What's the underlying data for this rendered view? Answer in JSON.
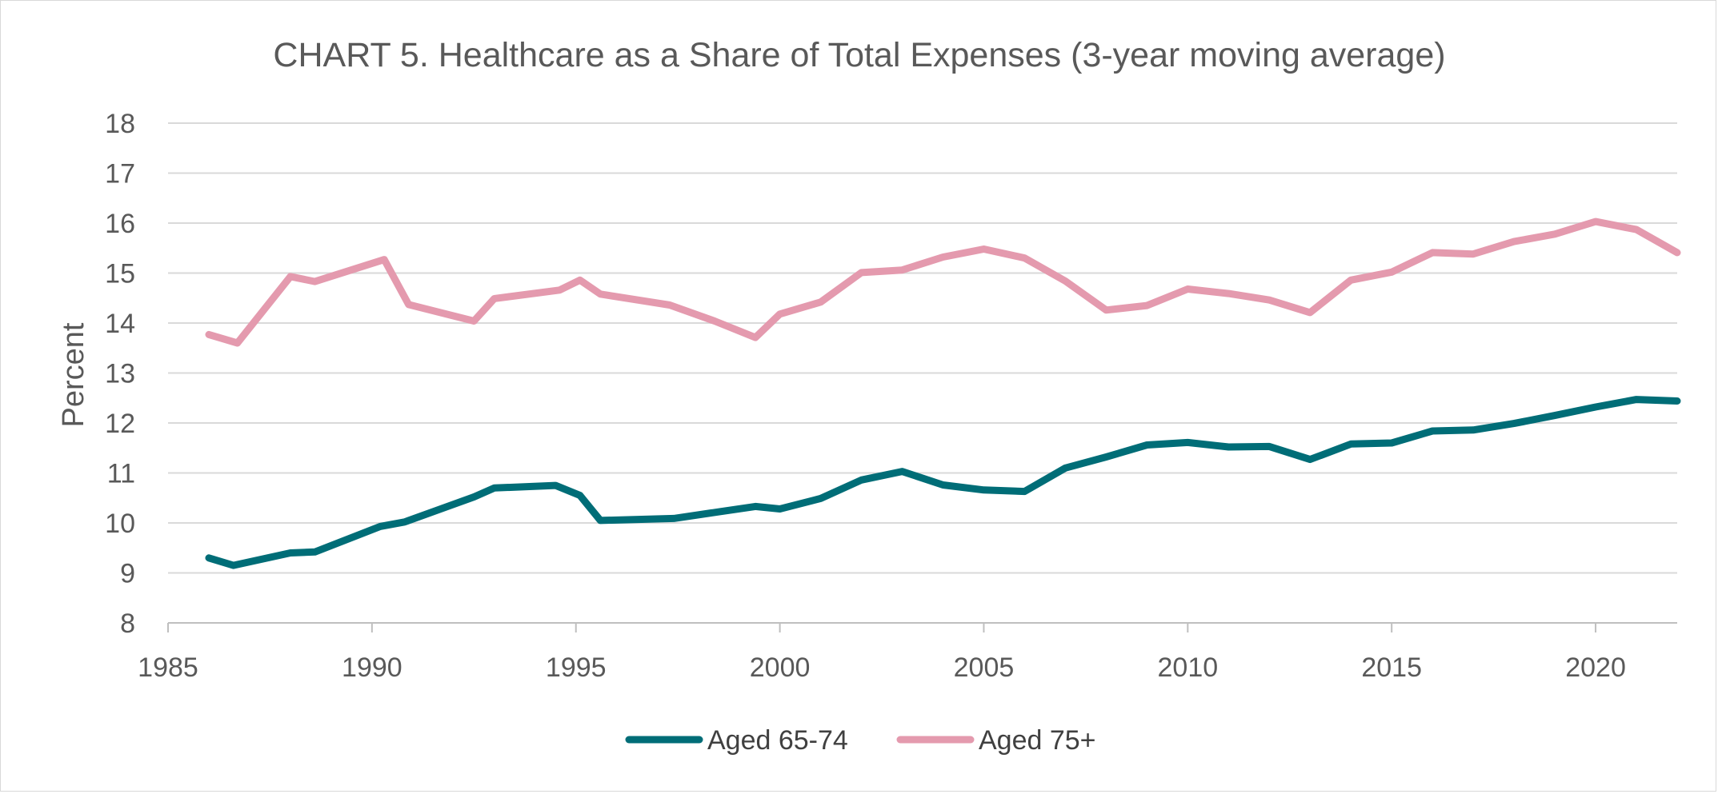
{
  "chart_data": {
    "type": "line",
    "title": "CHART 5. Healthcare as a Share of Total Expenses (3-year moving average)",
    "xlabel": "",
    "ylabel": "Percent",
    "xlim": [
      1985,
      2022
    ],
    "ylim": [
      8,
      18
    ],
    "x_ticks": [
      "1985",
      "1990",
      "1995",
      "2000",
      "2005",
      "2010",
      "2015",
      "2020"
    ],
    "y_ticks": [
      "8",
      "9",
      "10",
      "11",
      "12",
      "13",
      "14",
      "15",
      "16",
      "17",
      "18"
    ],
    "grid": true,
    "legend_position": "bottom",
    "series": [
      {
        "name": "Aged 65-74",
        "color": "#006D77",
        "points": [
          [
            1986,
            9.3
          ],
          [
            1986.6,
            9.15
          ],
          [
            1988,
            9.4
          ],
          [
            1988.6,
            9.42
          ],
          [
            1990.2,
            9.93
          ],
          [
            1990.8,
            10.02
          ],
          [
            1992.5,
            10.52
          ],
          [
            1993,
            10.7
          ],
          [
            1994.5,
            10.75
          ],
          [
            1995.1,
            10.55
          ],
          [
            1995.6,
            10.05
          ],
          [
            1997.4,
            10.09
          ],
          [
            1999.4,
            10.33
          ],
          [
            2000,
            10.28
          ],
          [
            2001,
            10.49
          ],
          [
            2002,
            10.86
          ],
          [
            2003,
            11.03
          ],
          [
            2004,
            10.76
          ],
          [
            2005,
            10.66
          ],
          [
            2006,
            10.63
          ],
          [
            2007,
            11.1
          ],
          [
            2008,
            11.32
          ],
          [
            2009,
            11.56
          ],
          [
            2010,
            11.61
          ],
          [
            2011,
            11.52
          ],
          [
            2012,
            11.53
          ],
          [
            2013,
            11.27
          ],
          [
            2014,
            11.58
          ],
          [
            2015,
            11.6
          ],
          [
            2016,
            11.84
          ],
          [
            2017,
            11.86
          ],
          [
            2018,
            11.99
          ],
          [
            2019,
            12.15
          ],
          [
            2020,
            12.32
          ],
          [
            2021,
            12.47
          ],
          [
            2022,
            12.44
          ]
        ]
      },
      {
        "name": "Aged 75+",
        "color": "#E49AAE",
        "points": [
          [
            1986,
            13.77
          ],
          [
            1986.7,
            13.6
          ],
          [
            1988,
            14.93
          ],
          [
            1988.6,
            14.83
          ],
          [
            1990.3,
            15.27
          ],
          [
            1990.9,
            14.37
          ],
          [
            1992.5,
            14.04
          ],
          [
            1993,
            14.49
          ],
          [
            1994.6,
            14.66
          ],
          [
            1995.1,
            14.86
          ],
          [
            1995.6,
            14.58
          ],
          [
            1997.3,
            14.36
          ],
          [
            1998.4,
            14.04
          ],
          [
            1999.4,
            13.71
          ],
          [
            2000,
            14.18
          ],
          [
            2001,
            14.42
          ],
          [
            2002,
            15.01
          ],
          [
            2003,
            15.06
          ],
          [
            2004,
            15.32
          ],
          [
            2005,
            15.48
          ],
          [
            2006,
            15.3
          ],
          [
            2007,
            14.84
          ],
          [
            2008,
            14.26
          ],
          [
            2009,
            14.35
          ],
          [
            2010,
            14.68
          ],
          [
            2011,
            14.59
          ],
          [
            2012,
            14.46
          ],
          [
            2013,
            14.21
          ],
          [
            2014,
            14.86
          ],
          [
            2015,
            15.02
          ],
          [
            2016,
            15.41
          ],
          [
            2017,
            15.38
          ],
          [
            2018,
            15.63
          ],
          [
            2019,
            15.78
          ],
          [
            2020,
            16.03
          ],
          [
            2021,
            15.87
          ],
          [
            2022,
            15.41
          ]
        ]
      }
    ]
  }
}
